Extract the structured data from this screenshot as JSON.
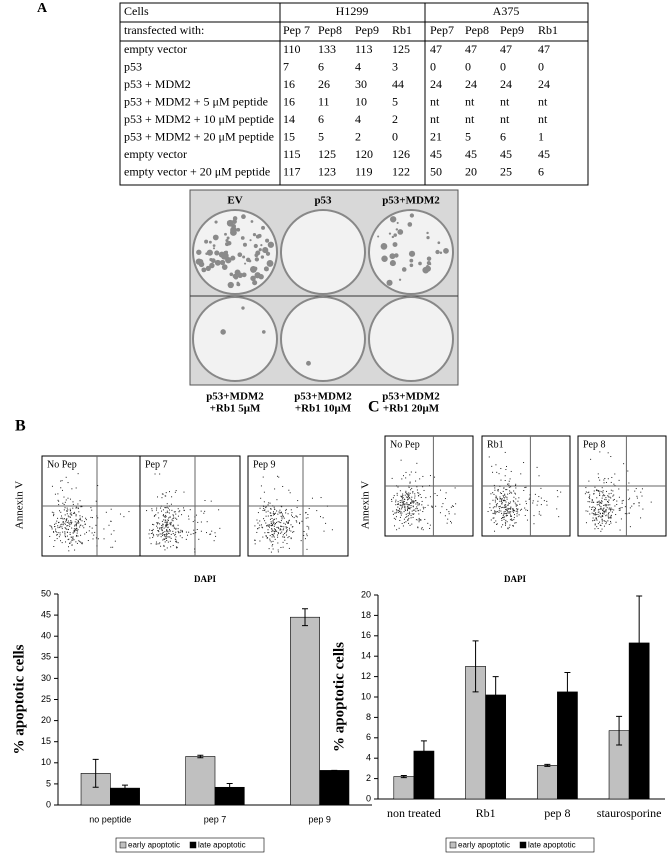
{
  "panels": {
    "a": "A",
    "b": "B",
    "c": "C"
  },
  "table": {
    "header": [
      "Cells",
      "H1299",
      "A375"
    ],
    "subheader": [
      "transfected with:",
      "Pep 7",
      "Pep8",
      "Pep9",
      "Rb1",
      "Pep7",
      "Pep8",
      "Pep9",
      "Rb1"
    ],
    "rows": [
      [
        "empty vector",
        110,
        133,
        113,
        125,
        47,
        47,
        47,
        47
      ],
      [
        "p53",
        7,
        6,
        4,
        3,
        0,
        0,
        0,
        0
      ],
      [
        "p53 + MDM2",
        16,
        26,
        30,
        44,
        24,
        24,
        24,
        24
      ],
      [
        "p53 + MDM2 +  5 μM peptide",
        16,
        11,
        10,
        5,
        "nt",
        "nt",
        "nt",
        "nt"
      ],
      [
        "p53 + MDM2 + 10 μM peptide",
        14,
        6,
        4,
        2,
        "nt",
        "nt",
        "nt",
        "nt"
      ],
      [
        "p53 + MDM2 + 20 μM peptide",
        15,
        5,
        2,
        0,
        21,
        5,
        6,
        1
      ],
      [
        "empty vector",
        115,
        125,
        120,
        126,
        45,
        45,
        45,
        45
      ],
      [
        "empty vector + 20 μM peptide",
        117,
        123,
        119,
        122,
        50,
        20,
        25,
        6
      ]
    ]
  },
  "plates": {
    "top_labels": [
      "EV",
      "p53",
      "p53+MDM2"
    ],
    "bottom_labels": [
      [
        "p53+MDM2",
        "+Rb1 5μM"
      ],
      [
        "p53+MDM2",
        "+Rb1 10μM"
      ],
      [
        "p53+MDM2",
        "+Rb1 20μM"
      ]
    ]
  },
  "flow_b": {
    "panels": [
      "No Pep",
      "Pep 7",
      "Pep 9"
    ],
    "y_label": "Annexin V",
    "x_label": "DAPI"
  },
  "flow_c": {
    "panels": [
      "No Pep",
      "Rb1",
      "Pep 8"
    ],
    "y_label": "Annexin V",
    "x_label": "DAPI"
  },
  "chart_data": [
    {
      "type": "bar",
      "y_label": "% apoptotic cells",
      "categories": [
        "no peptide",
        "pep 7",
        "pep 9"
      ],
      "ylim": [
        0,
        50
      ],
      "yticks": [
        0,
        5,
        10,
        15,
        20,
        25,
        30,
        35,
        40,
        45,
        50
      ],
      "grid": false,
      "series": [
        {
          "name": "early apoptotic",
          "color": "#c0c0c0",
          "values": [
            7.5,
            11.5,
            44.5
          ],
          "errors": [
            3.3,
            0.3,
            2
          ]
        },
        {
          "name": "late apoptotic",
          "color": "#000000",
          "values": [
            4,
            4.2,
            8.2
          ],
          "errors": [
            0.7,
            0.9,
            0
          ]
        }
      ]
    },
    {
      "type": "bar",
      "y_label": "% apoptotic cells",
      "categories": [
        "non treated",
        "Rb1",
        "pep 8",
        "staurosporine"
      ],
      "ylim": [
        0,
        20
      ],
      "yticks": [
        0,
        2,
        4,
        6,
        8,
        10,
        12,
        14,
        16,
        18,
        20
      ],
      "grid": false,
      "series": [
        {
          "name": "early apoptotic",
          "color": "#c0c0c0",
          "values": [
            2.2,
            13,
            3.3,
            6.7
          ],
          "errors": [
            0.1,
            2.5,
            0.1,
            1.4
          ]
        },
        {
          "name": "late apoptotic",
          "color": "#000000",
          "values": [
            4.7,
            10.2,
            10.5,
            15.3
          ],
          "errors": [
            1,
            1.8,
            1.9,
            4.6
          ]
        }
      ]
    }
  ]
}
